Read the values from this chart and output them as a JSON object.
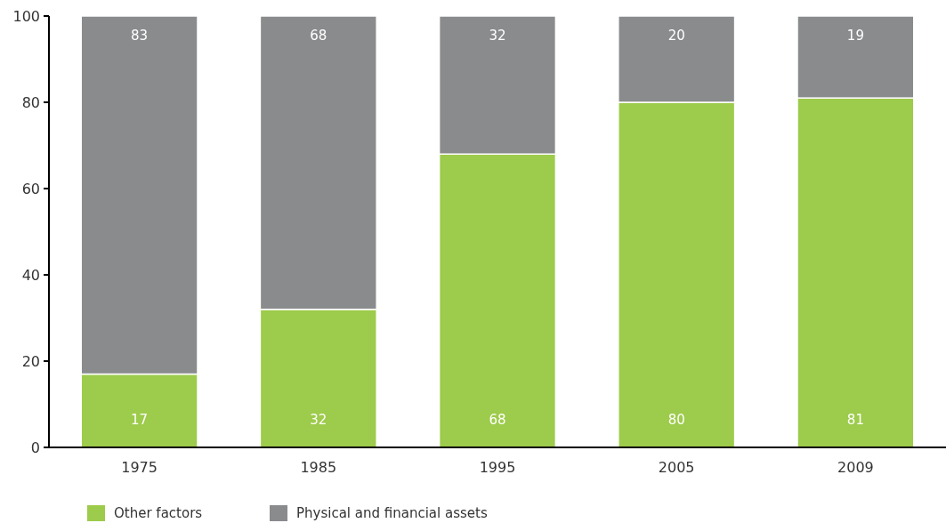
{
  "chart_data": {
    "type": "bar",
    "stacked": true,
    "categories": [
      "1975",
      "1985",
      "1995",
      "2005",
      "2009"
    ],
    "series": [
      {
        "name": "Other factors",
        "color": "#9dcb4b",
        "values": [
          17,
          32,
          68,
          80,
          81
        ]
      },
      {
        "name": "Physical and financial assets",
        "color": "#8a8b8d",
        "values": [
          83,
          68,
          32,
          20,
          19
        ]
      }
    ],
    "ylim": [
      0,
      100
    ],
    "yticks": [
      0,
      20,
      40,
      60,
      80,
      100
    ],
    "data_labels": true,
    "legend": "bottom left",
    "grid": false
  }
}
